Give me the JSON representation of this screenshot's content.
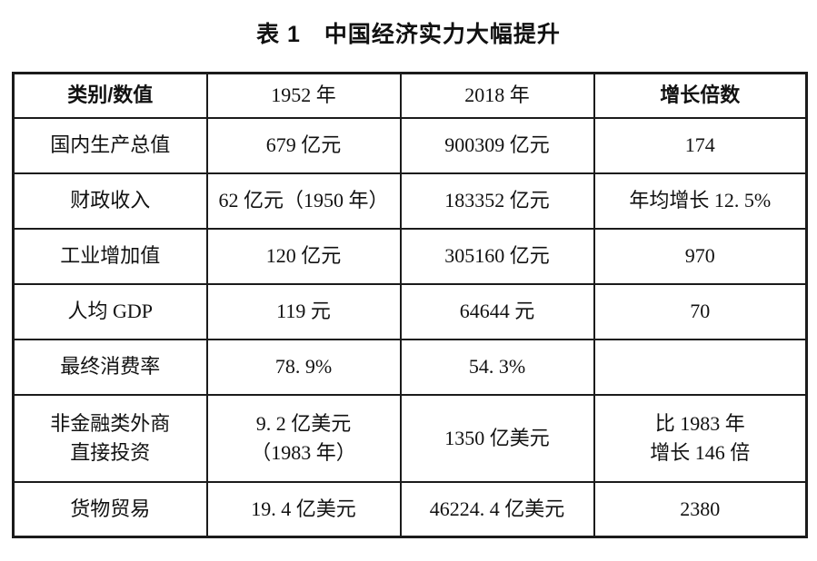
{
  "title": "表 1　中国经济实力大幅提升",
  "table": {
    "headers": {
      "category": "类别/数值",
      "year1952": "1952 年",
      "year2018": "2018 年",
      "growth": "增长倍数"
    },
    "rows": [
      {
        "category": "国内生产总值",
        "y1952": "679 亿元",
        "y2018": "900309 亿元",
        "growth": "174"
      },
      {
        "category": "财政收入",
        "y1952": "62 亿元（1950 年）",
        "y2018": "183352 亿元",
        "growth": "年均增长 12. 5%"
      },
      {
        "category": "工业增加值",
        "y1952": "120 亿元",
        "y2018": "305160 亿元",
        "growth": "970"
      },
      {
        "category": "人均 GDP",
        "y1952": "119 元",
        "y2018": "64644 元",
        "growth": "70"
      },
      {
        "category": "最终消费率",
        "y1952": "78. 9%",
        "y2018": "54. 3%",
        "growth": ""
      },
      {
        "category": [
          "非金融类外商",
          "直接投资"
        ],
        "y1952": [
          "9. 2 亿美元",
          "（1983 年）"
        ],
        "y2018": "1350 亿美元",
        "growth": [
          "比 1983 年",
          "增长 146 倍"
        ]
      },
      {
        "category": "货物贸易",
        "y1952": "19. 4 亿美元",
        "y2018": "46224. 4 亿美元",
        "growth": "2380"
      }
    ]
  }
}
